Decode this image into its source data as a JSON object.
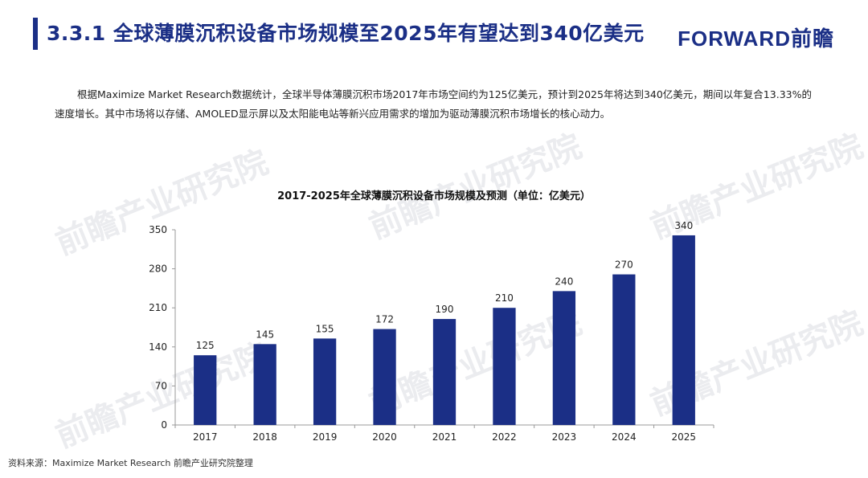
{
  "header": {
    "title": "3.3.1 全球薄膜沉积设备市场规模至2025年有望达到340亿美元",
    "brand": "FORWARD前瞻"
  },
  "intro": {
    "paragraph": "根据Maximize Market Research数据统计，全球半导体薄膜沉积市场2017年市场空间约为125亿美元，预计到2025年将达到340亿美元，期间以年复合13.33%的速度增长。其中市场将以存储、AMOLED显示屏以及太阳能电站等新兴应用需求的增加为驱动薄膜沉积市场增长的核心动力。"
  },
  "watermark": {
    "text": "前瞻产业研究院"
  },
  "source": "资料来源：Maximize Market Research 前瞻产业研究院整理",
  "colors": {
    "accent": "#1b2f86",
    "bar": "#1b2f86"
  },
  "chart_data": {
    "type": "bar",
    "title": "2017-2025年全球薄膜沉积设备市场规模及预测（单位：亿美元）",
    "categories": [
      "2017",
      "2018",
      "2019",
      "2020",
      "2021",
      "2022",
      "2023",
      "2024",
      "2025"
    ],
    "values": [
      125,
      145,
      155,
      172,
      190,
      210,
      240,
      270,
      340
    ],
    "ylim": [
      0,
      350
    ],
    "yticks": [
      0,
      70,
      140,
      210,
      280,
      350
    ],
    "xlabel": "",
    "ylabel": "",
    "grid": false,
    "data_labels": true
  }
}
